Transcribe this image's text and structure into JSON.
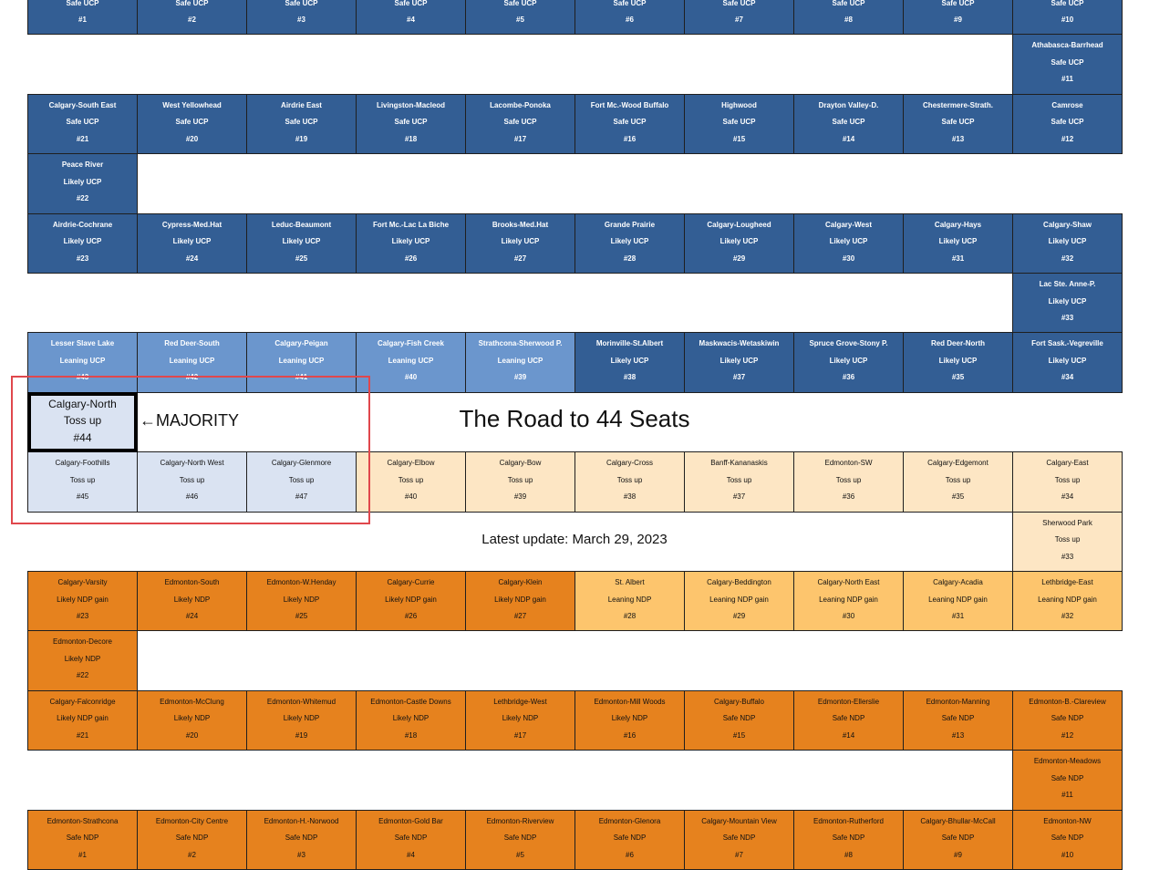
{
  "title": "The Road to 44 Seats",
  "annotation": "←MAJORITY",
  "update": "Latest update: March 29, 2023",
  "rows": [
    {
      "cells": [
        {
          "status": "Safe UCP",
          "num": "#1",
          "color": "#335e94"
        },
        {
          "status": "Safe UCP",
          "num": "#2",
          "color": "#335e94"
        },
        {
          "status": "Safe UCP",
          "num": "#3",
          "color": "#335e94"
        },
        {
          "status": "Safe UCP",
          "num": "#4",
          "color": "#335e94"
        },
        {
          "status": "Safe UCP",
          "num": "#5",
          "color": "#335e94"
        },
        {
          "status": "Safe UCP",
          "num": "#6",
          "color": "#335e94"
        },
        {
          "status": "Safe UCP",
          "num": "#7",
          "color": "#335e94"
        },
        {
          "status": "Safe UCP",
          "num": "#8",
          "color": "#335e94"
        },
        {
          "status": "Safe UCP",
          "num": "#9",
          "color": "#335e94"
        },
        {
          "status": "Safe UCP",
          "num": "#10",
          "color": "#335e94"
        }
      ]
    },
    {
      "cells": [
        {
          "name": "Athabasca-Barrhead",
          "status": "Safe UCP",
          "num": "#11",
          "color": "#335e94"
        }
      ]
    },
    {
      "cells": [
        {
          "name": "Calgary-South East",
          "status": "Safe UCP",
          "num": "#21",
          "color": "#335e94"
        },
        {
          "name": "West Yellowhead",
          "status": "Safe UCP",
          "num": "#20",
          "color": "#335e94"
        },
        {
          "name": "Airdrie East",
          "status": "Safe UCP",
          "num": "#19",
          "color": "#335e94"
        },
        {
          "name": "Livingston-Macleod",
          "status": "Safe UCP",
          "num": "#18",
          "color": "#335e94"
        },
        {
          "name": "Lacombe-Ponoka",
          "status": "Safe UCP",
          "num": "#17",
          "color": "#335e94"
        },
        {
          "name": "Fort Mc.-Wood Buffalo",
          "status": "Safe UCP",
          "num": "#16",
          "color": "#335e94"
        },
        {
          "name": "Highwood",
          "status": "Safe UCP",
          "num": "#15",
          "color": "#335e94"
        },
        {
          "name": "Drayton Valley-D.",
          "status": "Safe UCP",
          "num": "#14",
          "color": "#335e94"
        },
        {
          "name": "Chestermere-Strath.",
          "status": "Safe UCP",
          "num": "#13",
          "color": "#335e94"
        },
        {
          "name": "Camrose",
          "status": "Safe UCP",
          "num": "#12",
          "color": "#335e94"
        }
      ]
    },
    {
      "cells": [
        {
          "name": "Peace River",
          "status": "Likely UCP",
          "num": "#22",
          "color": "#335e94"
        }
      ]
    },
    {
      "cells": [
        {
          "name": "Airdrie-Cochrane",
          "status": "Likely UCP",
          "num": "#23",
          "color": "#335e94"
        },
        {
          "name": "Cypress-Med.Hat",
          "status": "Likely UCP",
          "num": "#24",
          "color": "#335e94"
        },
        {
          "name": "Leduc-Beaumont",
          "status": "Likely UCP",
          "num": "#25",
          "color": "#335e94"
        },
        {
          "name": "Fort Mc.-Lac La Biche",
          "status": "Likely UCP",
          "num": "#26",
          "color": "#335e94"
        },
        {
          "name": "Brooks-Med.Hat",
          "status": "Likely UCP",
          "num": "#27",
          "color": "#335e94"
        },
        {
          "name": "Grande Prairie",
          "status": "Likely UCP",
          "num": "#28",
          "color": "#335e94"
        },
        {
          "name": "Calgary-Lougheed",
          "status": "Likely UCP",
          "num": "#29",
          "color": "#335e94"
        },
        {
          "name": "Calgary-West",
          "status": "Likely UCP",
          "num": "#30",
          "color": "#335e94"
        },
        {
          "name": "Calgary-Hays",
          "status": "Likely UCP",
          "num": "#31",
          "color": "#335e94"
        },
        {
          "name": "Calgary-Shaw",
          "status": "Likely UCP",
          "num": "#32",
          "color": "#335e94"
        }
      ]
    },
    {
      "cells": [
        {
          "name": "Lac Ste. Anne-P.",
          "status": "Likely UCP",
          "num": "#33",
          "color": "#335e94"
        }
      ]
    },
    {
      "cells": [
        {
          "name": "Lesser Slave Lake",
          "status": "Leaning UCP",
          "num": "#43",
          "color": "#6b96cd"
        },
        {
          "name": "Red Deer-South",
          "status": "Leaning UCP",
          "num": "#42",
          "color": "#6b96cd"
        },
        {
          "name": "Calgary-Peigan",
          "status": "Leaning UCP",
          "num": "#41",
          "color": "#6b96cd"
        },
        {
          "name": "Calgary-Fish Creek",
          "status": "Leaning UCP",
          "num": "#40",
          "color": "#6b96cd"
        },
        {
          "name": "Strathcona-Sherwood P.",
          "status": "Leaning UCP",
          "num": "#39",
          "color": "#6b96cd"
        },
        {
          "name": "Morinville-St.Albert",
          "status": "Likely UCP",
          "num": "#38",
          "color": "#335e94"
        },
        {
          "name": "Maskwacis-Wetaskiwin",
          "status": "Likely UCP",
          "num": "#37",
          "color": "#335e94"
        },
        {
          "name": "Spruce Grove-Stony P.",
          "status": "Likely UCP",
          "num": "#36",
          "color": "#335e94"
        },
        {
          "name": "Red Deer-North",
          "status": "Likely UCP",
          "num": "#35",
          "color": "#335e94"
        },
        {
          "name": "Fort Sask.-Vegreville",
          "status": "Likely UCP",
          "num": "#34",
          "color": "#335e94"
        }
      ]
    },
    {
      "cells": [
        {
          "name": "Calgary-North",
          "status": "Toss up",
          "num": "#44",
          "color": "#dae3f2",
          "highlight": true
        }
      ]
    },
    {
      "cells": [
        {
          "name": "Calgary-Foothills",
          "status": "Toss up",
          "num": "#45",
          "color": "#dae3f2"
        },
        {
          "name": "Calgary-North West",
          "status": "Toss up",
          "num": "#46",
          "color": "#dae3f2"
        },
        {
          "name": "Calgary-Glenmore",
          "status": "Toss up",
          "num": "#47",
          "color": "#dae3f2"
        },
        {
          "name": "Calgary-Elbow",
          "status": "Toss up",
          "num": "#40",
          "color": "#fde6c4"
        },
        {
          "name": "Calgary-Bow",
          "status": "Toss up",
          "num": "#39",
          "color": "#fde6c4"
        },
        {
          "name": "Calgary-Cross",
          "status": "Toss up",
          "num": "#38",
          "color": "#fde6c4"
        },
        {
          "name": "Banff-Kananaskis",
          "status": "Toss up",
          "num": "#37",
          "color": "#fde6c4"
        },
        {
          "name": "Edmonton-SW",
          "status": "Toss up",
          "num": "#36",
          "color": "#fde6c4"
        },
        {
          "name": "Calgary-Edgemont",
          "status": "Toss up",
          "num": "#35",
          "color": "#fde6c4"
        },
        {
          "name": "Calgary-East",
          "status": "Toss up",
          "num": "#34",
          "color": "#fde6c4"
        }
      ]
    },
    {
      "cells": [
        {
          "name": "Sherwood Park",
          "status": "Toss up",
          "num": "#33",
          "color": "#fde6c4"
        }
      ]
    },
    {
      "cells": [
        {
          "name": "Calgary-Varsity",
          "status": "Likely NDP gain",
          "num": "#23",
          "color": "#e6821e"
        },
        {
          "name": "Edmonton-South",
          "status": "Likely NDP",
          "num": "#24",
          "color": "#e6821e"
        },
        {
          "name": "Edmonton-W.Henday",
          "status": "Likely NDP",
          "num": "#25",
          "color": "#e6821e"
        },
        {
          "name": "Calgary-Currie",
          "status": "Likely NDP gain",
          "num": "#26",
          "color": "#e6821e"
        },
        {
          "name": "Calgary-Klein",
          "status": "Likely NDP gain",
          "num": "#27",
          "color": "#e6821e"
        },
        {
          "name": "St. Albert",
          "status": "Leaning NDP",
          "num": "#28",
          "color": "#fdc56d"
        },
        {
          "name": "Calgary-Beddington",
          "status": "Leaning NDP gain",
          "num": "#29",
          "color": "#fdc56d"
        },
        {
          "name": "Calgary-North East",
          "status": "Leaning NDP gain",
          "num": "#30",
          "color": "#fdc56d"
        },
        {
          "name": "Calgary-Acadia",
          "status": "Leaning NDP gain",
          "num": "#31",
          "color": "#fdc56d"
        },
        {
          "name": "Lethbridge-East",
          "status": "Leaning NDP gain",
          "num": "#32",
          "color": "#fdc56d"
        }
      ]
    },
    {
      "cells": [
        {
          "name": "Edmonton-Decore",
          "status": "Likely NDP",
          "num": "#22",
          "color": "#e6821e"
        }
      ]
    },
    {
      "cells": [
        {
          "name": "Calgary-Falconridge",
          "status": "Likely NDP gain",
          "num": "#21",
          "color": "#e6821e"
        },
        {
          "name": "Edmonton-McClung",
          "status": "Likely NDP",
          "num": "#20",
          "color": "#e6821e"
        },
        {
          "name": "Edmonton-Whitemud",
          "status": "Likely NDP",
          "num": "#19",
          "color": "#e6821e"
        },
        {
          "name": "Edmonton-Castle Downs",
          "status": "Likely NDP",
          "num": "#18",
          "color": "#e6821e"
        },
        {
          "name": "Lethbridge-West",
          "status": "Likely NDP",
          "num": "#17",
          "color": "#e6821e"
        },
        {
          "name": "Edmonton-Mill Woods",
          "status": "Likely NDP",
          "num": "#16",
          "color": "#e6821e"
        },
        {
          "name": "Calgary-Buffalo",
          "status": "Safe NDP",
          "num": "#15",
          "color": "#e6821e"
        },
        {
          "name": "Edmonton-Ellerslie",
          "status": "Safe NDP",
          "num": "#14",
          "color": "#e6821e"
        },
        {
          "name": "Edmonton-Manning",
          "status": "Safe NDP",
          "num": "#13",
          "color": "#e6821e"
        },
        {
          "name": "Edmonton-B.-Clareview",
          "status": "Safe NDP",
          "num": "#12",
          "color": "#e6821e"
        }
      ]
    },
    {
      "cells": [
        {
          "name": "Edmonton-Meadows",
          "status": "Safe NDP",
          "num": "#11",
          "color": "#e6821e"
        }
      ]
    },
    {
      "cells": [
        {
          "name": "Edmonton-Strathcona",
          "status": "Safe NDP",
          "num": "#1",
          "color": "#e6821e"
        },
        {
          "name": "Edmonton-City Centre",
          "status": "Safe NDP",
          "num": "#2",
          "color": "#e6821e"
        },
        {
          "name": "Edmonton-H.-Norwood",
          "status": "Safe NDP",
          "num": "#3",
          "color": "#e6821e"
        },
        {
          "name": "Edmonton-Gold Bar",
          "status": "Safe NDP",
          "num": "#4",
          "color": "#e6821e"
        },
        {
          "name": "Edmonton-Riverview",
          "status": "Safe NDP",
          "num": "#5",
          "color": "#e6821e"
        },
        {
          "name": "Edmonton-Glenora",
          "status": "Safe NDP",
          "num": "#6",
          "color": "#e6821e"
        },
        {
          "name": "Calgary-Mountain View",
          "status": "Safe NDP",
          "num": "#7",
          "color": "#e6821e"
        },
        {
          "name": "Edmonton-Rutherford",
          "status": "Safe NDP",
          "num": "#8",
          "color": "#e6821e"
        },
        {
          "name": "Calgary-Bhullar-McCall",
          "status": "Safe NDP",
          "num": "#9",
          "color": "#e6821e"
        },
        {
          "name": "Edmonton-NW",
          "status": "Safe NDP",
          "num": "#10",
          "color": "#e6821e"
        }
      ]
    }
  ]
}
